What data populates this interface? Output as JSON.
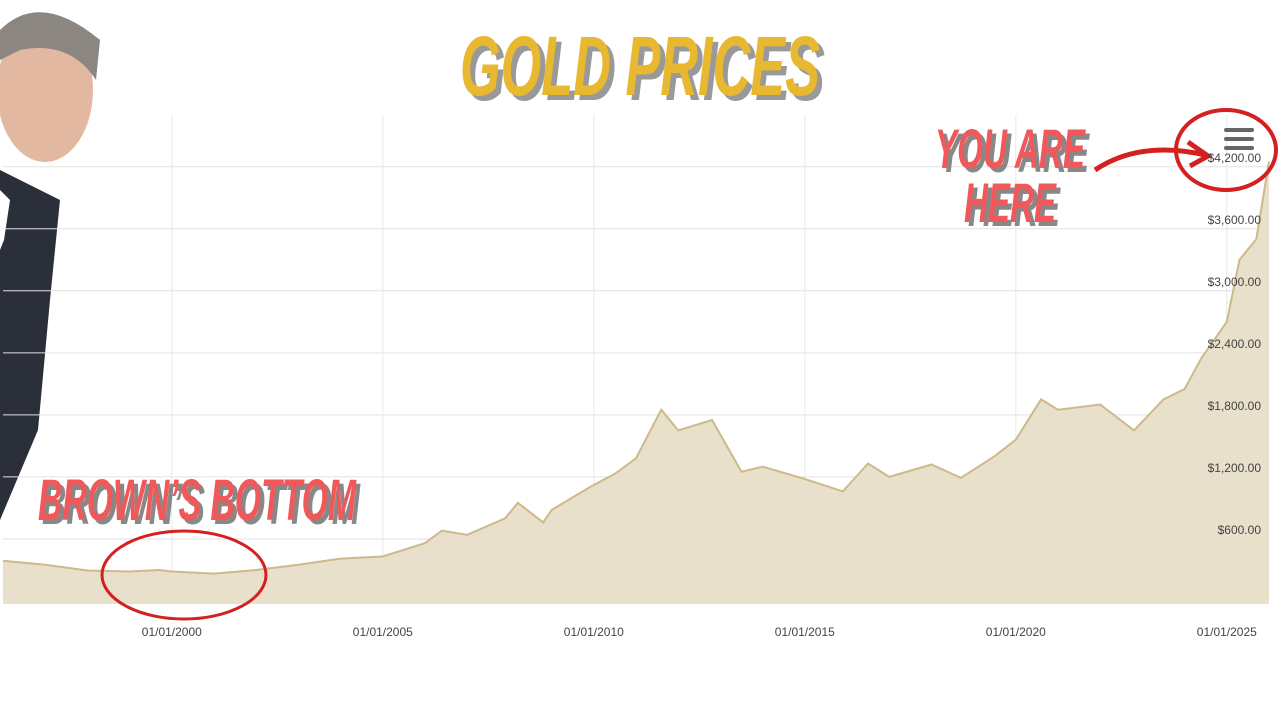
{
  "chart_data": {
    "type": "area",
    "title": "GOLD PRICES",
    "annotations": [
      "BROWN’S BOTTOM",
      "YOU ARE",
      "HERE"
    ],
    "x": [
      1996,
      1997,
      1998,
      1999,
      1999.7,
      2000,
      2001,
      2002,
      2003,
      2004,
      2005,
      2006,
      2006.4,
      2007,
      2007.9,
      2008.2,
      2008.8,
      2009,
      2009.9,
      2010.5,
      2011,
      2011.6,
      2012,
      2012.8,
      2013.5,
      2014,
      2015,
      2015.9,
      2016.5,
      2017,
      2018,
      2018.7,
      2019.5,
      2020,
      2020.6,
      2021,
      2022,
      2022.8,
      2023.5,
      2024,
      2024.4,
      2025,
      2025.3,
      2025.7,
      2026
    ],
    "values": [
      390,
      350,
      295,
      285,
      300,
      285,
      265,
      300,
      350,
      410,
      430,
      560,
      680,
      640,
      800,
      950,
      760,
      880,
      1100,
      1230,
      1380,
      1850,
      1650,
      1750,
      1250,
      1300,
      1180,
      1060,
      1330,
      1200,
      1320,
      1190,
      1400,
      1560,
      1950,
      1850,
      1900,
      1650,
      1950,
      2050,
      2350,
      2700,
      3300,
      3500,
      4250
    ],
    "color": "#e9e0cb",
    "line_color": "#cdb98a",
    "xlim": [
      1996,
      2026
    ],
    "xticks": [
      {
        "value": 2000,
        "label": "01/01/2000"
      },
      {
        "value": 2005,
        "label": "01/01/2005"
      },
      {
        "value": 2010,
        "label": "01/01/2010"
      },
      {
        "value": 2015,
        "label": "01/01/2015"
      },
      {
        "value": 2020,
        "label": "01/01/2020"
      },
      {
        "value": 2025,
        "label": "01/01/2025"
      }
    ],
    "ylim": [
      0,
      4700
    ],
    "yticks": [
      {
        "value": 600,
        "label": "$600.00"
      },
      {
        "value": 1200,
        "label": "$1,200.00"
      },
      {
        "value": 1800,
        "label": "$1,800.00"
      },
      {
        "value": 2400,
        "label": "$2,400.00"
      },
      {
        "value": 3000,
        "label": "$3,000.00"
      },
      {
        "value": 3600,
        "label": "$3,600.00"
      },
      {
        "value": 4200,
        "label": "$4,200.00"
      }
    ],
    "grid": true
  }
}
